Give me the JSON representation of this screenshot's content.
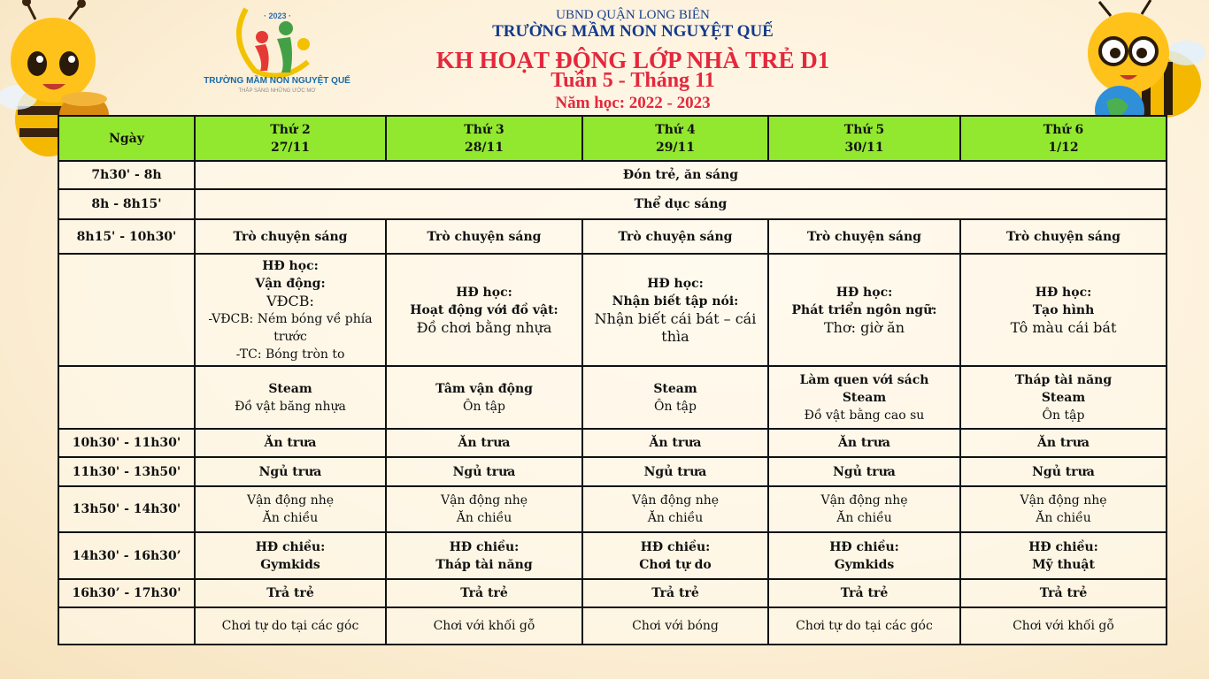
{
  "header": {
    "district": "UBND QUẬN LONG BIÊN",
    "school": "TRƯỜNG MẦM NON NGUYỆT QUẾ",
    "title": "KH HOẠT ĐỘNG LỚP NHÀ TRẺ D1",
    "week": "Tuần 5 - Tháng 11",
    "school_year": "Năm học: 2022 - 2023"
  },
  "logo": {
    "year": "· 2023 ·",
    "name": "TRƯỜNG MẦM NON NGUYỆT QUẾ",
    "slogan": "THẮP SÁNG NHỮNG ƯỚC MƠ"
  },
  "colors": {
    "header_row": "#92e82f",
    "title": "#e4283c",
    "school": "#123a8c"
  },
  "table": {
    "columns": [
      {
        "lines": [
          "Ngày"
        ]
      },
      {
        "lines": [
          "Thứ 2",
          "27/11"
        ]
      },
      {
        "lines": [
          "Thứ 3",
          "28/11"
        ]
      },
      {
        "lines": [
          "Thứ 4",
          "29/11"
        ]
      },
      {
        "lines": [
          "Thứ 5",
          "30/11"
        ]
      },
      {
        "lines": [
          "Thứ 6",
          "1/12"
        ]
      }
    ],
    "rows": [
      {
        "time": "7h30' - 8h",
        "merged": [
          {
            "t": "Đón trẻ, ăn sáng",
            "b": true
          }
        ]
      },
      {
        "time": "8h - 8h15'",
        "merged": [
          {
            "t": "Thể dục sáng",
            "b": true
          }
        ]
      },
      {
        "time": "8h15' - 10h30'",
        "cells": [
          [
            {
              "t": "Trò chuyện sáng",
              "b": true
            }
          ],
          [
            {
              "t": "Trò chuyện sáng",
              "b": true
            }
          ],
          [
            {
              "t": "Trò chuyện sáng",
              "b": true
            }
          ],
          [
            {
              "t": "Trò chuyện sáng",
              "b": true
            }
          ],
          [
            {
              "t": "Trò chuyện sáng",
              "b": true
            }
          ]
        ]
      },
      {
        "time": "",
        "cells": [
          [
            {
              "t": "HĐ học:",
              "b": true
            },
            {
              "t": "Vận động:",
              "b": true
            },
            {
              "t": "VĐCB:",
              "big": true
            },
            {
              "t": "-VĐCB: Ném bóng về phía trước"
            },
            {
              "t": "-TC: Bóng tròn to"
            }
          ],
          [
            {
              "t": "HĐ học:",
              "b": true
            },
            {
              "t": "Hoạt động với đồ vật:",
              "b": true
            },
            {
              "t": "Đồ chơi bằng nhựa",
              "big": true
            }
          ],
          [
            {
              "t": "HĐ học:",
              "b": true
            },
            {
              "t": "Nhận biết tập nói:",
              "b": true
            },
            {
              "t": "Nhận biết cái bát – cái thìa",
              "big": true
            }
          ],
          [
            {
              "t": "HĐ học:",
              "b": true
            },
            {
              "t": "Phát triển ngôn ngữ:",
              "b": true
            },
            {
              "t": "Thơ: giờ ăn",
              "big": true
            }
          ],
          [
            {
              "t": "HĐ học:",
              "b": true
            },
            {
              "t": "Tạo hình",
              "b": true
            },
            {
              "t": "Tô màu cái bát",
              "big": true
            }
          ]
        ]
      },
      {
        "time": "",
        "cells": [
          [
            {
              "t": "Steam",
              "b": true
            },
            {
              "t": "Đồ vật băng nhựa"
            }
          ],
          [
            {
              "t": "Tâm vận động",
              "b": true
            },
            {
              "t": "Ôn tập"
            }
          ],
          [
            {
              "t": "Steam",
              "b": true
            },
            {
              "t": "Ôn tập"
            }
          ],
          [
            {
              "t": "Làm quen với sách",
              "b": true
            },
            {
              "t": "Steam",
              "b": true
            },
            {
              "t": "Đồ vật bằng cao su"
            }
          ],
          [
            {
              "t": "Tháp tài năng",
              "b": true
            },
            {
              "t": "Steam",
              "b": true
            },
            {
              "t": "Ôn tập"
            }
          ]
        ]
      },
      {
        "time": "10h30' - 11h30'",
        "cells": [
          [
            {
              "t": "Ăn trưa",
              "b": true
            }
          ],
          [
            {
              "t": "Ăn trưa",
              "b": true
            }
          ],
          [
            {
              "t": "Ăn trưa",
              "b": true
            }
          ],
          [
            {
              "t": "Ăn trưa",
              "b": true
            }
          ],
          [
            {
              "t": "Ăn trưa",
              "b": true
            }
          ]
        ]
      },
      {
        "time": "11h30' - 13h50'",
        "cells": [
          [
            {
              "t": "Ngủ trưa",
              "b": true
            }
          ],
          [
            {
              "t": "Ngủ trưa",
              "b": true
            }
          ],
          [
            {
              "t": "Ngủ trưa",
              "b": true
            }
          ],
          [
            {
              "t": "Ngủ trưa",
              "b": true
            }
          ],
          [
            {
              "t": "Ngủ trưa",
              "b": true
            }
          ]
        ]
      },
      {
        "time": "13h50' - 14h30'",
        "cells": [
          [
            {
              "t": "Vận động nhẹ"
            },
            {
              "t": "Ăn chiều"
            }
          ],
          [
            {
              "t": "Vận động nhẹ"
            },
            {
              "t": "Ăn chiều"
            }
          ],
          [
            {
              "t": "Vận động nhẹ"
            },
            {
              "t": "Ăn chiều"
            }
          ],
          [
            {
              "t": "Vận động nhẹ"
            },
            {
              "t": "Ăn chiều"
            }
          ],
          [
            {
              "t": "Vận động nhẹ"
            },
            {
              "t": "Ăn chiều"
            }
          ]
        ]
      },
      {
        "time": "14h30' - 16h30’",
        "cells": [
          [
            {
              "t": "HĐ chiều:",
              "b": true
            },
            {
              "t": "Gymkids",
              "b": true
            }
          ],
          [
            {
              "t": "HĐ chiều:",
              "b": true
            },
            {
              "t": "Tháp tài năng",
              "b": true
            }
          ],
          [
            {
              "t": "HĐ chiều:",
              "b": true
            },
            {
              "t": "Chơi tự do",
              "b": true
            }
          ],
          [
            {
              "t": "HĐ chiều:",
              "b": true
            },
            {
              "t": "Gymkids",
              "b": true
            }
          ],
          [
            {
              "t": "HĐ chiều:",
              "b": true
            },
            {
              "t": "Mỹ thuật",
              "b": true
            }
          ]
        ]
      },
      {
        "time": "16h30’ - 17h30'",
        "cells": [
          [
            {
              "t": "Trả trẻ",
              "b": true
            }
          ],
          [
            {
              "t": "Trả trẻ",
              "b": true
            }
          ],
          [
            {
              "t": "Trả trẻ",
              "b": true
            }
          ],
          [
            {
              "t": "Trả trẻ",
              "b": true
            }
          ],
          [
            {
              "t": "Trả trẻ",
              "b": true
            }
          ]
        ]
      },
      {
        "time": "",
        "cells": [
          [
            {
              "t": "Chơi tự do tại các góc"
            }
          ],
          [
            {
              "t": "Chơi với khối gỗ"
            }
          ],
          [
            {
              "t": "Chơi với bóng"
            }
          ],
          [
            {
              "t": "Chơi tự do tại các góc"
            }
          ],
          [
            {
              "t": "Chơi với khối gỗ"
            }
          ]
        ]
      }
    ]
  }
}
